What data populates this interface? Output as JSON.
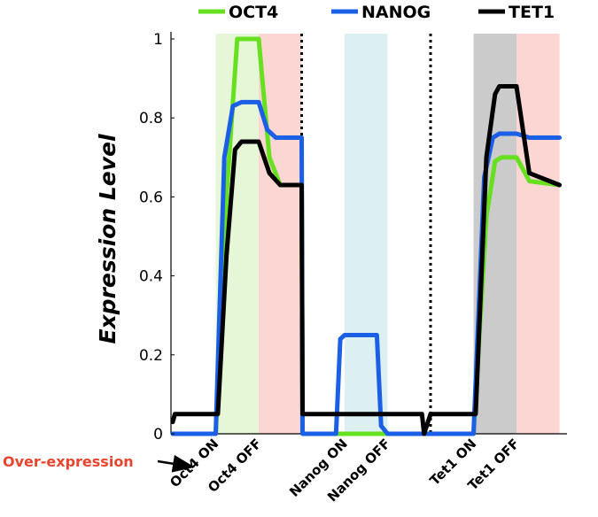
{
  "chart_data": {
    "type": "line",
    "ylabel": "Expression Level",
    "ylim": [
      0,
      1
    ],
    "yticks": [
      "0",
      "0.2",
      "0.4",
      "0.6",
      "0.8",
      "1"
    ],
    "xlim": [
      0,
      10
    ],
    "x_categories": [
      "Oct4 ON",
      "Oct4 OFF",
      "Nanog ON",
      "Nanog OFF",
      "Tet1 ON",
      "Tet1 OFF"
    ],
    "x_category_positions": [
      1,
      2,
      4,
      5,
      7,
      8
    ],
    "annotation": "Over-expression",
    "regions": [
      {
        "x0": 1,
        "x1": 2,
        "color": "#e6f7d8"
      },
      {
        "x0": 2,
        "x1": 3,
        "color": "#fbd6d2"
      },
      {
        "x0": 4,
        "x1": 5,
        "color": "#dcf0f2"
      },
      {
        "x0": 7,
        "x1": 8,
        "color": "#cbcbcb"
      },
      {
        "x0": 8,
        "x1": 9,
        "color": "#fbd6d2"
      }
    ],
    "dividers": [
      3,
      6
    ],
    "series": [
      {
        "name": "OCT4",
        "color": "#66e01f",
        "x": [
          0,
          1,
          1.25,
          1.5,
          1.7,
          1.85,
          2,
          2.25,
          2.5,
          3,
          3.02,
          4,
          4.05,
          5,
          5.05,
          6,
          6.02,
          7,
          7.3,
          7.5,
          7.65,
          7.8,
          8,
          8.3,
          9
        ],
        "values": [
          0,
          0,
          0.6,
          1.0,
          1.0,
          1.0,
          1.0,
          0.7,
          0.63,
          0.63,
          0,
          0,
          0,
          0,
          0,
          0,
          0,
          0,
          0.55,
          0.69,
          0.7,
          0.7,
          0.7,
          0.64,
          0.63
        ]
      },
      {
        "name": "NANOG",
        "color": "#1a5fe6",
        "x": [
          0,
          1,
          1.2,
          1.4,
          1.6,
          1.85,
          2,
          2.2,
          2.4,
          3,
          3.02,
          3.8,
          3.9,
          4,
          4.75,
          4.85,
          5,
          6,
          6.02,
          7,
          7.25,
          7.45,
          7.6,
          7.8,
          8,
          8.3,
          9
        ],
        "values": [
          0,
          0,
          0.7,
          0.83,
          0.84,
          0.84,
          0.84,
          0.77,
          0.75,
          0.75,
          0,
          0,
          0.24,
          0.25,
          0.25,
          0.02,
          0,
          0,
          0,
          0,
          0.65,
          0.75,
          0.76,
          0.76,
          0.76,
          0.75,
          0.75
        ]
      },
      {
        "name": "TET1",
        "color": "#000000",
        "x": [
          0,
          0.05,
          1,
          1.05,
          1.25,
          1.45,
          1.6,
          1.85,
          2,
          2.25,
          2.5,
          3,
          3.02,
          5.8,
          5.85,
          6,
          7,
          7.05,
          7.3,
          7.5,
          7.6,
          7.8,
          8,
          8.3,
          9
        ],
        "values": [
          0.03,
          0.05,
          0.05,
          0.05,
          0.45,
          0.72,
          0.74,
          0.74,
          0.74,
          0.66,
          0.63,
          0.63,
          0.05,
          0.05,
          0,
          0.05,
          0.05,
          0.05,
          0.7,
          0.86,
          0.88,
          0.88,
          0.88,
          0.66,
          0.63
        ]
      }
    ]
  }
}
